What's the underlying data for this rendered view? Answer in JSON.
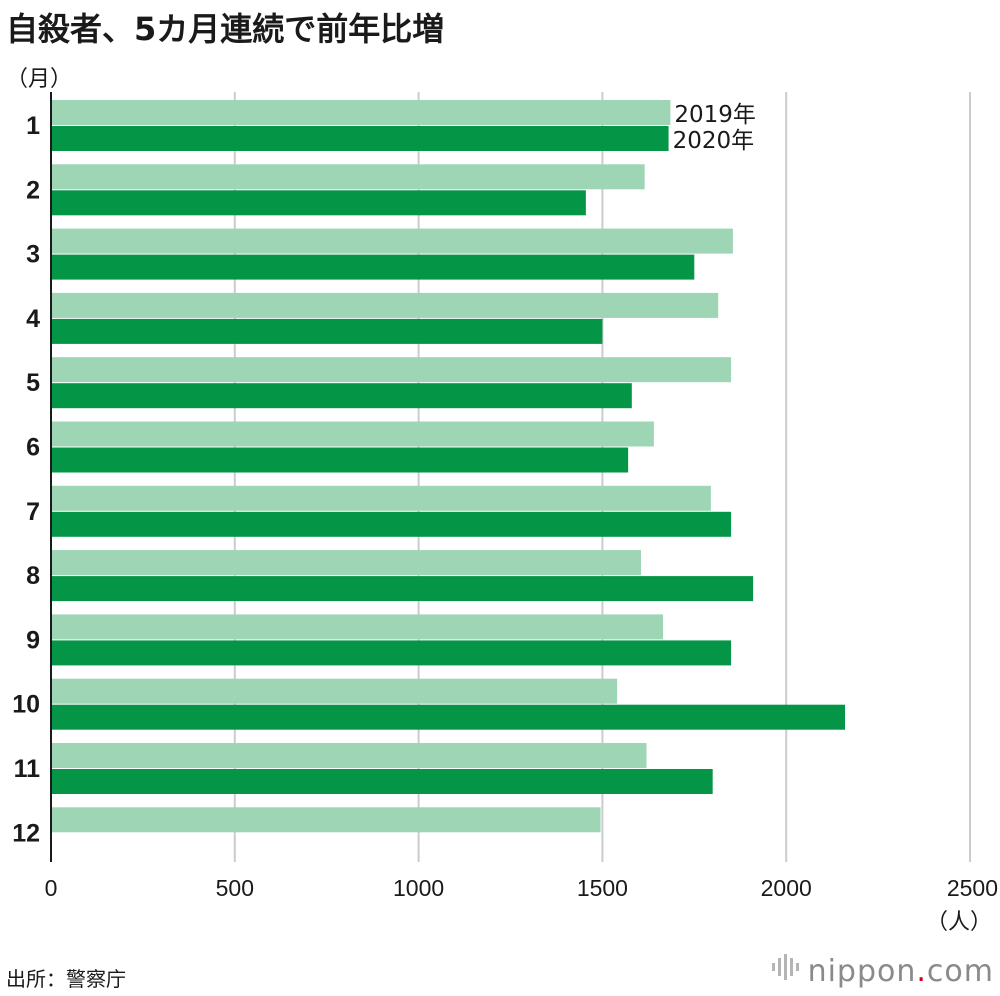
{
  "header": {
    "title": "自殺者、5カ月連続で前年比増"
  },
  "axis_units": {
    "y": "（月）",
    "x": "（人）"
  },
  "footer": {
    "source": "出所：警察庁",
    "brand_name": "nippon",
    "brand_dot": ".",
    "brand_tld": "com"
  },
  "colors": {
    "series_2019": "#9dd5b5",
    "series_2020": "#059546",
    "grid": "#cccccc",
    "axis": "#1a1a1a",
    "text": "#1a1a1a",
    "brand": "#8a8a8a",
    "brand_dot": "#d0021b"
  },
  "chart_data": {
    "type": "bar",
    "orientation": "horizontal",
    "categories": [
      "1",
      "2",
      "3",
      "4",
      "5",
      "6",
      "7",
      "8",
      "9",
      "10",
      "11",
      "12"
    ],
    "series": [
      {
        "name": "2019年",
        "values": [
          1685,
          1615,
          1855,
          1815,
          1850,
          1640,
          1795,
          1605,
          1665,
          1540,
          1620,
          1495
        ]
      },
      {
        "name": "2020年",
        "values": [
          1680,
          1455,
          1750,
          1500,
          1580,
          1570,
          1850,
          1910,
          1850,
          2160,
          1800,
          null
        ]
      }
    ],
    "xticks": [
      0,
      500,
      1000,
      1500,
      2000,
      2500
    ],
    "xlim": [
      0,
      2500
    ],
    "grid": true,
    "legend": "inline labels at the ends of the month 1 bars"
  }
}
